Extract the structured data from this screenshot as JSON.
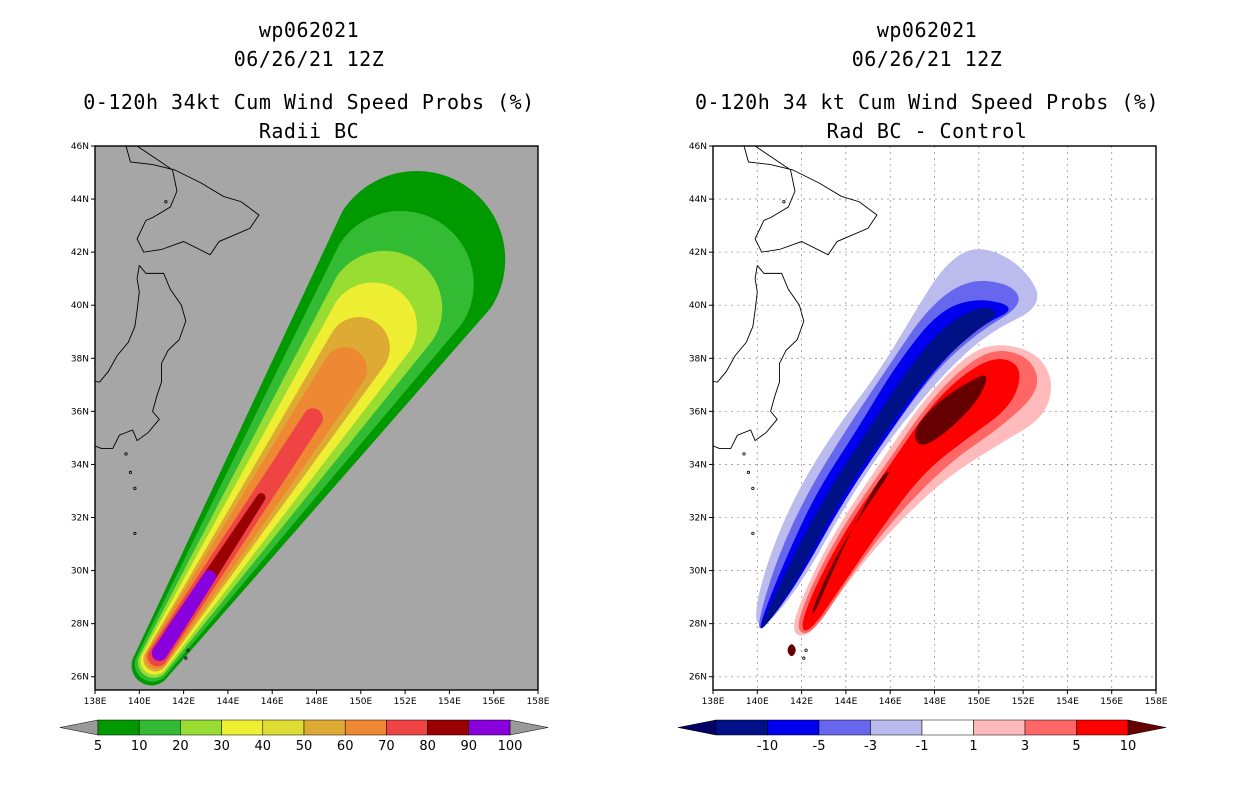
{
  "panels": [
    {
      "title": [
        "wp062021",
        "06/26/21 12Z",
        "0-120h 34kt Cum Wind Speed Probs (%)",
        "Radii BC"
      ],
      "colorbar": {
        "labels": [
          "5",
          "10",
          "20",
          "30",
          "40",
          "50",
          "60",
          "70",
          "80",
          "90",
          "100"
        ],
        "colors": [
          "#009900",
          "#33bb33",
          "#99dd33",
          "#eeee33",
          "#dddd33",
          "#ddaa33",
          "#ee8833",
          "#ee4444",
          "#990000",
          "#8800dd"
        ],
        "ends": [
          "#999999",
          "#999999"
        ]
      }
    },
    {
      "title": [
        "wp062021",
        "06/26/21 12Z",
        "0-120h 34 kt Cum Wind Speed Probs (%)",
        "Rad BC - Control"
      ],
      "colorbar": {
        "labels": [
          "-10",
          "-5",
          "-3",
          "-1",
          "1",
          "3",
          "5",
          "10"
        ],
        "colors": [
          "#001188",
          "#0000ee",
          "#6666ee",
          "#bbbbee",
          "#ffffff",
          "#ffbbbb",
          "#ff6666",
          "#ff0000"
        ],
        "ends": [
          "#000066",
          "#660000"
        ]
      }
    }
  ],
  "chart_data": [
    {
      "type": "contour-map",
      "title": "0-120h 34kt Cum Wind Speed Probs (%)",
      "subtitle": "Radii BC",
      "storm": "wp062021",
      "valid": "06/26/21 12Z",
      "x_ticks": [
        "138E",
        "140E",
        "142E",
        "144E",
        "146E",
        "148E",
        "150E",
        "152E",
        "154E",
        "156E",
        "158E"
      ],
      "y_ticks": [
        "26N",
        "28N",
        "30N",
        "32N",
        "34N",
        "36N",
        "38N",
        "40N",
        "42N",
        "44N",
        "46N"
      ],
      "xlim": [
        138,
        158
      ],
      "ylim": [
        25.5,
        46
      ],
      "background": "#a6a6a6",
      "grid": false,
      "track_axis": {
        "start": [
          141.0,
          27.0
        ],
        "end": [
          150.0,
          38.5
        ]
      },
      "levels": [
        {
          "value": 5,
          "color": "#009900",
          "start_along": -0.05,
          "end_along": 1.28,
          "width_start": 0.9,
          "width_end": 4.0
        },
        {
          "value": 10,
          "color": "#33bb33",
          "start_along": -0.045,
          "end_along": 1.2,
          "width_start": 0.8,
          "width_end": 3.3
        },
        {
          "value": 20,
          "color": "#99dd33",
          "start_along": -0.04,
          "end_along": 1.12,
          "width_start": 0.7,
          "width_end": 2.6
        },
        {
          "value": 30,
          "color": "#eeee33",
          "start_along": -0.035,
          "end_along": 1.06,
          "width_start": 0.62,
          "width_end": 2.0
        },
        {
          "value": 50,
          "color": "#ddaa33",
          "start_along": -0.03,
          "end_along": 0.99,
          "width_start": 0.55,
          "width_end": 1.4
        },
        {
          "value": 60,
          "color": "#ee8833",
          "start_along": -0.025,
          "end_along": 0.92,
          "width_start": 0.5,
          "width_end": 1.0
        },
        {
          "value": 70,
          "color": "#ee4444",
          "start_along": -0.02,
          "end_along": 0.76,
          "width_start": 0.45,
          "width_end": 0.45
        },
        {
          "value": 80,
          "color": "#990000",
          "start_along": 0.05,
          "end_along": 0.5,
          "width_start": 0.35,
          "width_end": 0.2
        },
        {
          "value": 90,
          "color": "#8800dd",
          "start_along": -0.01,
          "end_along": 0.24,
          "width_start": 0.35,
          "width_end": 0.3
        }
      ]
    },
    {
      "type": "contour-map",
      "title": "0-120h 34 kt Cum Wind Speed Probs (%)",
      "subtitle": "Rad BC - Control",
      "storm": "wp062021",
      "valid": "06/26/21 12Z",
      "x_ticks": [
        "138E",
        "140E",
        "142E",
        "144E",
        "146E",
        "148E",
        "150E",
        "152E",
        "154E",
        "156E",
        "158E"
      ],
      "y_ticks": [
        "26N",
        "28N",
        "30N",
        "32N",
        "34N",
        "36N",
        "38N",
        "40N",
        "42N",
        "44N",
        "46N"
      ],
      "xlim": [
        138,
        158
      ],
      "ylim": [
        25.5,
        46
      ],
      "background": "#ffffff",
      "grid": true,
      "levels": [
        {
          "value": -1,
          "color": "#bbbbee",
          "path_deg": [
            [
              139.8,
              28.2
            ],
            [
              140.5,
              30.5
            ],
            [
              141.8,
              33.0
            ],
            [
              143.5,
              35.3
            ],
            [
              145.5,
              37.5
            ],
            [
              147.0,
              39.6
            ],
            [
              148.5,
              41.6
            ],
            [
              150.0,
              42.3
            ],
            [
              152.0,
              41.5
            ],
            [
              153.0,
              40.0
            ],
            [
              150.5,
              39.0
            ],
            [
              148.5,
              37.5
            ],
            [
              146.0,
              35.0
            ],
            [
              144.0,
              32.5
            ],
            [
              142.0,
              29.5
            ],
            [
              140.3,
              27.8
            ]
          ]
        },
        {
          "value": -3,
          "color": "#6666ee",
          "path_deg": [
            [
              140.0,
              28.0
            ],
            [
              140.9,
              30.5
            ],
            [
              142.3,
              33.0
            ],
            [
              144.0,
              35.3
            ],
            [
              146.0,
              37.8
            ],
            [
              147.7,
              39.9
            ],
            [
              149.5,
              41.0
            ],
            [
              151.5,
              40.8
            ],
            [
              152.0,
              40.0
            ],
            [
              150.0,
              39.0
            ],
            [
              148.0,
              37.5
            ],
            [
              145.8,
              35.0
            ],
            [
              143.8,
              32.5
            ],
            [
              141.8,
              29.5
            ],
            [
              140.2,
              27.7
            ]
          ]
        },
        {
          "value": -5,
          "color": "#0000ee",
          "path_deg": [
            [
              140.1,
              28.0
            ],
            [
              141.3,
              30.5
            ],
            [
              142.7,
              33.0
            ],
            [
              144.5,
              35.3
            ],
            [
              146.3,
              37.8
            ],
            [
              148.2,
              39.8
            ],
            [
              150.0,
              40.3
            ],
            [
              151.8,
              39.9
            ],
            [
              150.0,
              39.2
            ],
            [
              148.0,
              37.6
            ],
            [
              145.8,
              35.0
            ],
            [
              143.8,
              32.5
            ],
            [
              141.8,
              29.5
            ],
            [
              140.2,
              27.7
            ]
          ]
        },
        {
          "value": -10,
          "color": "#001188",
          "path_deg": [
            [
              140.2,
              28.0
            ],
            [
              141.6,
              30.5
            ],
            [
              143.2,
              33.0
            ],
            [
              145.0,
              35.3
            ],
            [
              146.8,
              37.6
            ],
            [
              148.5,
              39.3
            ],
            [
              150.2,
              40.0
            ],
            [
              151.0,
              39.7
            ],
            [
              149.5,
              38.8
            ],
            [
              147.6,
              37.3
            ],
            [
              145.6,
              35.0
            ],
            [
              143.6,
              32.5
            ],
            [
              141.7,
              29.5
            ],
            [
              140.2,
              27.7
            ]
          ]
        },
        {
          "value": 1,
          "color": "#ffbbbb",
          "path_deg": [
            [
              141.5,
              27.6
            ],
            [
              142.0,
              29.0
            ],
            [
              143.5,
              31.5
            ],
            [
              145.5,
              34.0
            ],
            [
              147.3,
              36.2
            ],
            [
              149.0,
              37.8
            ],
            [
              150.5,
              38.6
            ],
            [
              152.5,
              38.3
            ],
            [
              153.4,
              37.2
            ],
            [
              153.0,
              35.8
            ],
            [
              151.0,
              34.8
            ],
            [
              148.5,
              33.5
            ],
            [
              146.0,
              31.5
            ],
            [
              144.0,
              29.5
            ],
            [
              142.4,
              27.5
            ]
          ]
        },
        {
          "value": 3,
          "color": "#ff6666",
          "path_deg": [
            [
              141.7,
              27.7
            ],
            [
              142.3,
              29.2
            ],
            [
              143.8,
              31.6
            ],
            [
              145.8,
              34.0
            ],
            [
              147.6,
              36.2
            ],
            [
              149.3,
              37.7
            ],
            [
              150.8,
              38.4
            ],
            [
              152.4,
              38.0
            ],
            [
              152.8,
              36.8
            ],
            [
              151.0,
              35.4
            ],
            [
              148.7,
              34.1
            ],
            [
              146.2,
              32.0
            ],
            [
              144.2,
              29.8
            ],
            [
              142.5,
              27.6
            ]
          ]
        },
        {
          "value": 5,
          "color": "#ff0000",
          "path_deg": [
            [
              141.9,
              27.8
            ],
            [
              142.6,
              29.4
            ],
            [
              144.1,
              31.7
            ],
            [
              146.0,
              34.0
            ],
            [
              147.9,
              36.3
            ],
            [
              149.6,
              37.6
            ],
            [
              151.0,
              38.1
            ],
            [
              152.0,
              37.6
            ],
            [
              151.5,
              36.2
            ],
            [
              149.5,
              35.0
            ],
            [
              147.5,
              33.7
            ],
            [
              145.6,
              31.6
            ],
            [
              143.8,
              29.4
            ],
            [
              142.4,
              27.7
            ]
          ]
        },
        {
          "value": 10,
          "color": "#660000",
          "path_deg": [
            [
              142.4,
              28.4
            ],
            [
              143.5,
              30.5
            ],
            [
              145.0,
              32.5
            ],
            [
              146.1,
              33.8
            ],
            [
              145.6,
              33.6
            ],
            [
              144.3,
              31.6
            ],
            [
              143.2,
              29.6
            ],
            [
              142.6,
              28.4
            ]
          ]
        },
        {
          "value": 10,
          "color": "#660000",
          "path_deg": [
            [
              147.0,
              35.3
            ],
            [
              148.2,
              36.4
            ],
            [
              149.5,
              37.1
            ],
            [
              150.5,
              37.5
            ],
            [
              150.0,
              36.4
            ],
            [
              148.4,
              35.1
            ],
            [
              147.3,
              34.6
            ]
          ]
        },
        {
          "value": 10,
          "color": "#660000",
          "path_deg": [
            [
              141.3,
              27.0
            ],
            [
              141.55,
              27.3
            ],
            [
              141.8,
              27.0
            ],
            [
              141.55,
              26.7
            ]
          ]
        }
      ]
    }
  ]
}
